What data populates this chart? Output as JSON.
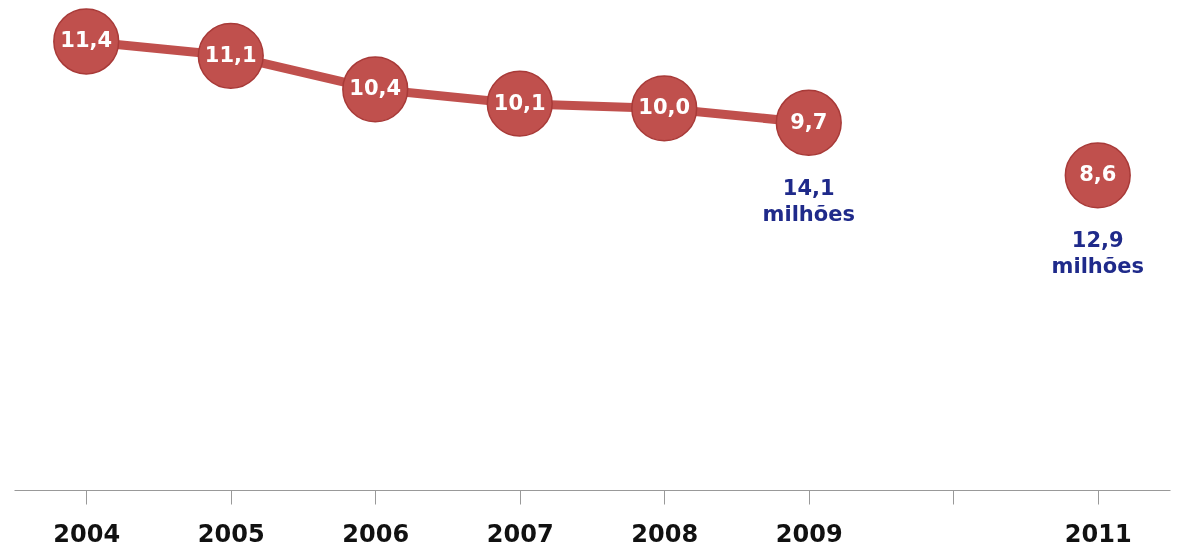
{
  "chart_data": {
    "type": "line",
    "categories": [
      "2004",
      "2005",
      "2006",
      "2007",
      "2008",
      "2009",
      null,
      "2011"
    ],
    "series": [
      {
        "color": "#c0504d",
        "values": [
          11.4,
          11.1,
          10.4,
          10.1,
          10.0,
          9.7,
          null,
          null
        ],
        "value_labels": [
          "11,4",
          "11,1",
          "10,4",
          "10,1",
          "10,0",
          "9,7",
          null,
          null
        ]
      },
      {
        "type": "scatter",
        "color": "#c0504d",
        "values": [
          null,
          null,
          null,
          null,
          null,
          null,
          null,
          8.6
        ],
        "value_labels": [
          null,
          null,
          null,
          null,
          null,
          null,
          null,
          "8,6"
        ]
      }
    ],
    "marker": "circle",
    "line_style": "solid",
    "grid": false,
    "annotations": [
      {
        "text": "14,1 milhões",
        "x": "2009",
        "y": 9.7
      },
      {
        "text": "12,9 milhões",
        "x": "2011",
        "y": 8.6
      }
    ]
  }
}
